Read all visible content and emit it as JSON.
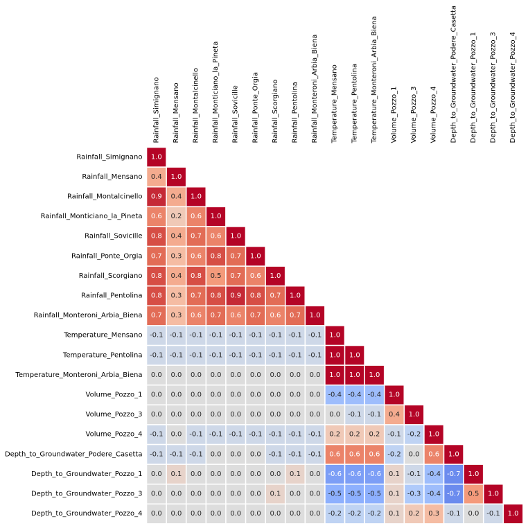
{
  "chart_data": {
    "type": "heatmap",
    "title": "",
    "xlabel": "",
    "ylabel": "",
    "colormap": "coolwarm",
    "vmin": -1,
    "vmax": 1,
    "mask": "upper-triangle",
    "colorbar": false,
    "variables": [
      "Rainfall_Simignano",
      "Rainfall_Mensano",
      "Rainfall_Montalcinello",
      "Rainfall_Monticiano_la_Pineta",
      "Rainfall_Sovicille",
      "Rainfall_Ponte_Orgia",
      "Rainfall_Scorgiano",
      "Rainfall_Pentolina",
      "Rainfall_Monteroni_Arbia_Biena",
      "Temperature_Mensano",
      "Temperature_Pentolina",
      "Temperature_Monteroni_Arbia_Biena",
      "Volume_Pozzo_1",
      "Volume_Pozzo_3",
      "Volume_Pozzo_4",
      "Depth_to_Groundwater_Podere_Casetta",
      "Depth_to_Groundwater_Pozzo_1",
      "Depth_to_Groundwater_Pozzo_3",
      "Depth_to_Groundwater_Pozzo_4"
    ],
    "values": [
      [
        1.0
      ],
      [
        0.4,
        1.0
      ],
      [
        0.9,
        0.4,
        1.0
      ],
      [
        0.6,
        0.2,
        0.6,
        1.0
      ],
      [
        0.8,
        0.4,
        0.7,
        0.6,
        1.0
      ],
      [
        0.7,
        0.3,
        0.6,
        0.8,
        0.7,
        1.0
      ],
      [
        0.8,
        0.4,
        0.8,
        0.5,
        0.7,
        0.6,
        1.0
      ],
      [
        0.8,
        0.3,
        0.7,
        0.8,
        0.9,
        0.8,
        0.7,
        1.0
      ],
      [
        0.7,
        0.3,
        0.6,
        0.7,
        0.6,
        0.7,
        0.6,
        0.7,
        1.0
      ],
      [
        -0.1,
        -0.1,
        -0.1,
        -0.1,
        -0.1,
        -0.1,
        -0.1,
        -0.1,
        -0.1,
        1.0
      ],
      [
        -0.1,
        -0.1,
        -0.1,
        -0.1,
        -0.1,
        -0.1,
        -0.1,
        -0.1,
        -0.1,
        1.0,
        1.0
      ],
      [
        -0.0,
        -0.0,
        -0.0,
        -0.0,
        -0.0,
        0.0,
        -0.0,
        -0.0,
        -0.0,
        1.0,
        1.0,
        1.0
      ],
      [
        0.0,
        0.0,
        0.0,
        0.0,
        0.0,
        0.0,
        -0.0,
        0.0,
        0.0,
        -0.4,
        -0.4,
        -0.4,
        1.0
      ],
      [
        0.0,
        0.0,
        0.0,
        -0.0,
        0.0,
        -0.0,
        0.0,
        -0.0,
        0.0,
        -0.0,
        -0.1,
        -0.1,
        0.4,
        1.0
      ],
      [
        -0.1,
        -0.0,
        -0.1,
        -0.1,
        -0.1,
        -0.1,
        -0.1,
        -0.1,
        -0.1,
        0.2,
        0.2,
        0.2,
        -0.1,
        -0.2,
        1.0
      ],
      [
        -0.1,
        -0.1,
        -0.1,
        -0.0,
        -0.0,
        -0.0,
        -0.1,
        -0.1,
        -0.1,
        0.6,
        0.6,
        0.6,
        -0.2,
        -0.0,
        0.6,
        1.0
      ],
      [
        0.0,
        0.1,
        0.0,
        0.0,
        0.0,
        0.0,
        0.0,
        0.1,
        0.0,
        -0.6,
        -0.6,
        -0.6,
        0.1,
        -0.1,
        -0.4,
        -0.7,
        1.0
      ],
      [
        0.0,
        0.0,
        0.0,
        0.0,
        0.0,
        -0.0,
        0.1,
        0.0,
        -0.0,
        -0.5,
        -0.5,
        -0.5,
        0.1,
        -0.3,
        -0.4,
        -0.7,
        0.5,
        1.0
      ],
      [
        0.0,
        0.0,
        0.0,
        0.0,
        -0.0,
        -0.0,
        0.0,
        -0.0,
        0.0,
        -0.2,
        -0.2,
        -0.2,
        0.1,
        0.2,
        0.3,
        -0.1,
        0.0,
        -0.1,
        1.0
      ]
    ]
  }
}
